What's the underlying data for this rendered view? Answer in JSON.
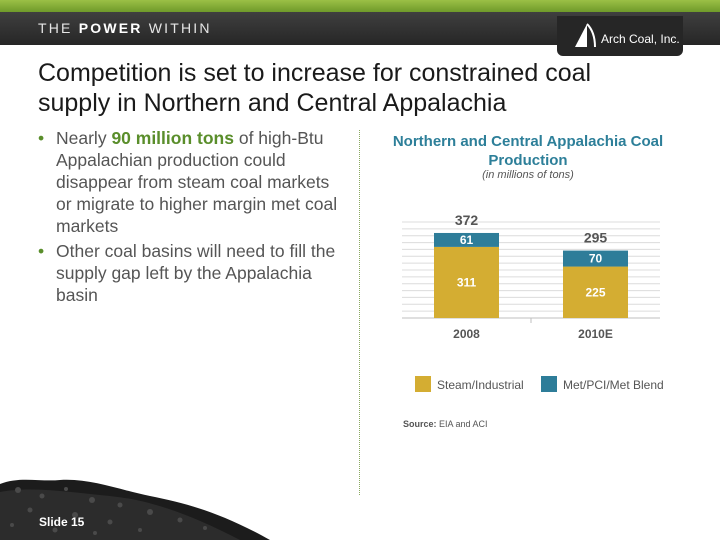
{
  "header": {
    "tagline_the": "THE",
    "tagline_power": "POWER",
    "tagline_within": "WITHIN",
    "logo_text": "Arch Coal, Inc."
  },
  "slide": {
    "title": "Competition is set to increase for constrained coal supply in Northern and Central Appalachia",
    "bullet1_highlight": "90 million tons",
    "bullet1_pre": "Nearly ",
    "bullet1_post": " of high-Btu Appalachian production could disappear from steam coal markets or migrate to higher margin met coal markets",
    "bullet2": "Other coal basins will need to fill the supply gap left by the Appalachia basin",
    "slide_number": "Slide 15",
    "source_label": "Source:",
    "source_text": " EIA and ACI"
  },
  "chart_data": {
    "type": "bar",
    "stacked": true,
    "title": "Northern and Central Appalachia Coal Production",
    "subtitle": "(in millions of tons)",
    "categories": [
      "2008",
      "2010E"
    ],
    "totals": [
      372,
      295
    ],
    "series": [
      {
        "name": "Steam/Industrial",
        "values": [
          311,
          225
        ],
        "color": "#d4ad32"
      },
      {
        "name": "Met/PCI/Met Blend",
        "values": [
          61,
          70
        ],
        "color": "#2e7d99"
      }
    ],
    "ylim": [
      0,
      420
    ],
    "grid": true,
    "legend": "bottom"
  },
  "colors": {
    "accent_green": "#5a8e2b",
    "chart_title_blue": "#2d7f99"
  }
}
